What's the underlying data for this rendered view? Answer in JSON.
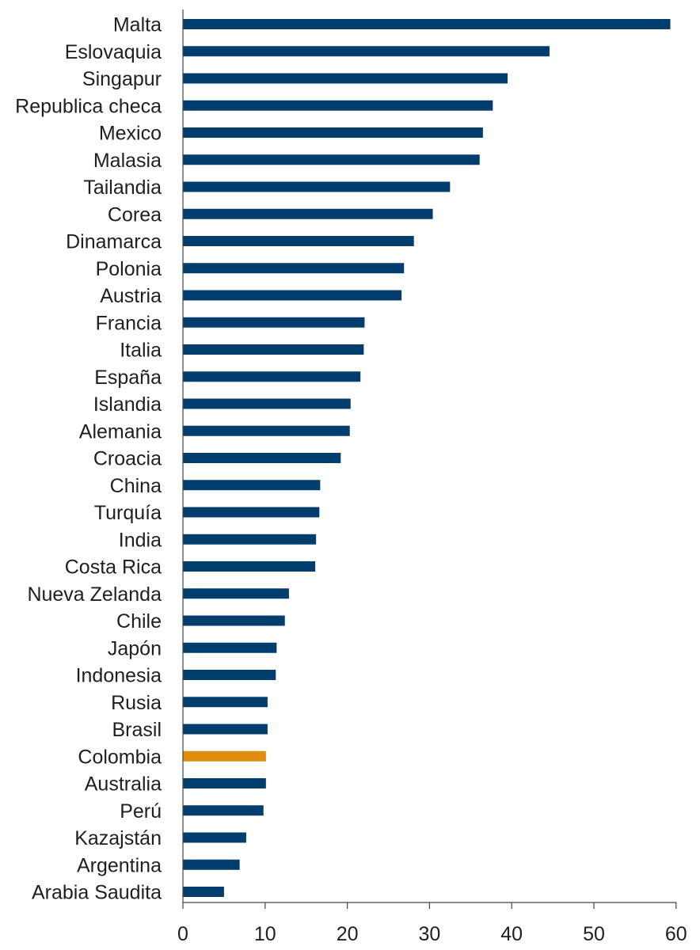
{
  "chart_data": {
    "type": "bar",
    "orientation": "horizontal",
    "categories": [
      "Malta",
      "Eslovaquia",
      "Singapur",
      "Republica checa",
      "Mexico",
      "Malasia",
      "Tailandia",
      "Corea",
      "Dinamarca",
      "Polonia",
      "Austria",
      "Francia",
      "Italia",
      "España",
      "Islandia",
      "Alemania",
      "Croacia",
      "China",
      "Turquía",
      "India",
      "Costa Rica",
      "Nueva Zelanda",
      "Chile",
      "Japón",
      "Indonesia",
      "Rusia",
      "Brasil",
      "Colombia",
      "Australia",
      "Perú",
      "Kazajstán",
      "Argentina",
      "Arabia Saudita"
    ],
    "values": [
      59.3,
      44.6,
      39.5,
      37.7,
      36.5,
      36.1,
      32.5,
      30.4,
      28.1,
      26.9,
      26.6,
      22.1,
      22.0,
      21.6,
      20.4,
      20.3,
      19.2,
      16.7,
      16.6,
      16.2,
      16.1,
      12.9,
      12.4,
      11.4,
      11.3,
      10.3,
      10.3,
      10.1,
      10.1,
      9.8,
      7.7,
      6.9,
      5.0
    ],
    "highlight": "Colombia",
    "title": "",
    "xlabel": "",
    "ylabel": "",
    "xlim": [
      0,
      60
    ],
    "xticks": [
      0,
      10,
      20,
      30,
      40,
      50,
      60
    ],
    "grid": false,
    "legend": "none",
    "colors": {
      "bar": "#013d6d",
      "highlight": "#df8e0e",
      "axis": "#444444",
      "text": "#1f1f1f"
    }
  }
}
